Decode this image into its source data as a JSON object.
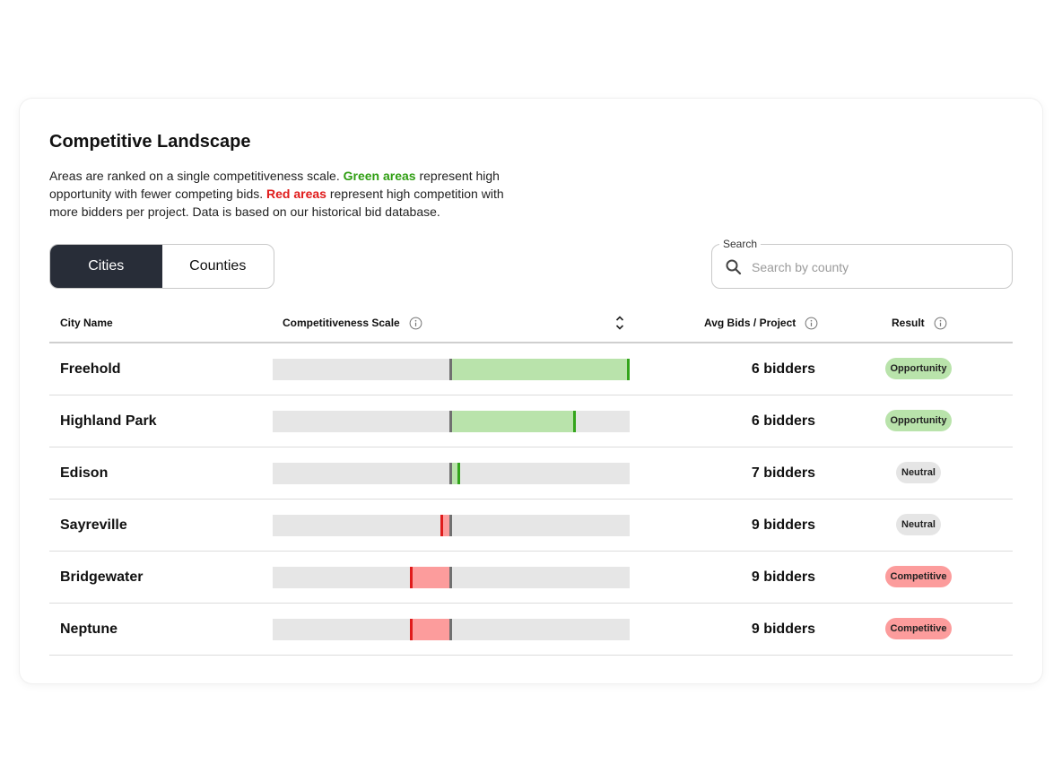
{
  "header": {
    "title": "Competitive Landscape",
    "desc_part1": "Areas are ranked on a single competitiveness scale. ",
    "desc_green": "Green areas",
    "desc_part2": " represent high opportunity with fewer competing bids. ",
    "desc_red": "Red areas",
    "desc_part3": " represent high competition with more bidders per project. Data is based on our historical bid database."
  },
  "toggle": {
    "cities": "Cities",
    "counties": "Counties",
    "selected": "Cities"
  },
  "search": {
    "label": "Search",
    "placeholder": "Search by county",
    "value": ""
  },
  "table": {
    "col_city": "City Name",
    "col_scale": "Competitiveness Scale",
    "col_bids": "Avg Bids / Project",
    "col_result": "Result"
  },
  "rows": [
    {
      "city": "Freehold",
      "scale": 1.0,
      "bids": "6 bidders",
      "result": "Opportunity"
    },
    {
      "city": "Highland Park",
      "scale": 0.7,
      "bids": "6 bidders",
      "result": "Opportunity"
    },
    {
      "city": "Edison",
      "scale": 0.05,
      "bids": "7 bidders",
      "result": "Neutral"
    },
    {
      "city": "Sayreville",
      "scale": -0.05,
      "bids": "9 bidders",
      "result": "Neutral"
    },
    {
      "city": "Bridgewater",
      "scale": -0.22,
      "bids": "9 bidders",
      "result": "Competitive"
    },
    {
      "city": "Neptune",
      "scale": -0.22,
      "bids": "9 bidders",
      "result": "Competitive"
    }
  ],
  "colors": {
    "positive_fill": "#b9e3ab",
    "positive_marker": "#33a51b",
    "negative_fill": "#fc9c9c",
    "negative_marker": "#e01b1b",
    "toggle_active": "#282d38"
  }
}
